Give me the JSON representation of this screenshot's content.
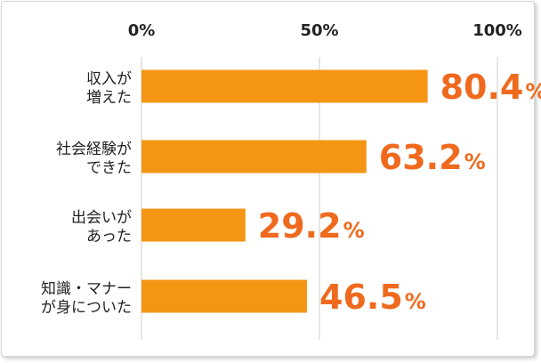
{
  "chart_data": {
    "type": "bar",
    "orientation": "horizontal",
    "categories": [
      [
        "収入が",
        "増えた"
      ],
      [
        "社会経験が",
        "できた"
      ],
      [
        "出会いが",
        "あった"
      ],
      [
        "知識・マナー",
        "が身についた"
      ]
    ],
    "values": [
      80.4,
      63.2,
      29.2,
      46.5
    ],
    "value_labels": [
      "80.4",
      "63.2",
      "29.2",
      "46.5"
    ],
    "value_unit": "%",
    "xticks": [
      "0%",
      "50%",
      "100%"
    ],
    "xtick_values": [
      0,
      50,
      100
    ],
    "xlim": [
      0,
      100
    ],
    "grid": true,
    "title": "",
    "xlabel": "",
    "ylabel": "",
    "colors": {
      "bar": "#f49614",
      "value_text": "#ef6a1e",
      "grid": "#cccccc",
      "text": "#222222"
    }
  }
}
